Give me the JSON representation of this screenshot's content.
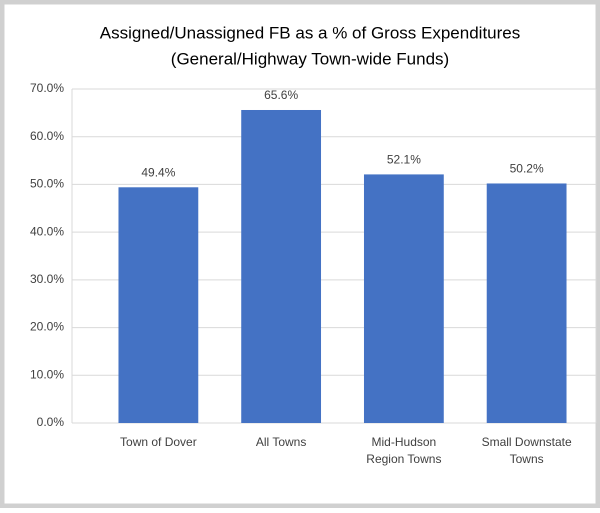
{
  "chart_data": {
    "type": "bar",
    "title": [
      "Assigned/Unassigned FB as a % of Gross Expenditures",
      "(General/Highway Town-wide Funds)"
    ],
    "categories": [
      [
        "Town of Dover"
      ],
      [
        "All Towns"
      ],
      [
        "Mid-Hudson",
        "Region Towns"
      ],
      [
        "Small Downstate",
        "Towns"
      ]
    ],
    "values": [
      49.4,
      65.6,
      52.1,
      50.2
    ],
    "value_labels": [
      "49.4%",
      "65.6%",
      "52.1%",
      "50.2%"
    ],
    "color": "#4472c4",
    "ylim": [
      0,
      70
    ],
    "yticks": [
      {
        "value": 0,
        "label": "0.0%"
      },
      {
        "value": 10,
        "label": "10.0%"
      },
      {
        "value": 20,
        "label": "20.0%"
      },
      {
        "value": 30,
        "label": "30.0%"
      },
      {
        "value": 40,
        "label": "40.0%"
      },
      {
        "value": 50,
        "label": "50.0%"
      },
      {
        "value": 60,
        "label": "60.0%"
      },
      {
        "value": 70,
        "label": "70.0%"
      }
    ],
    "grid": true
  }
}
